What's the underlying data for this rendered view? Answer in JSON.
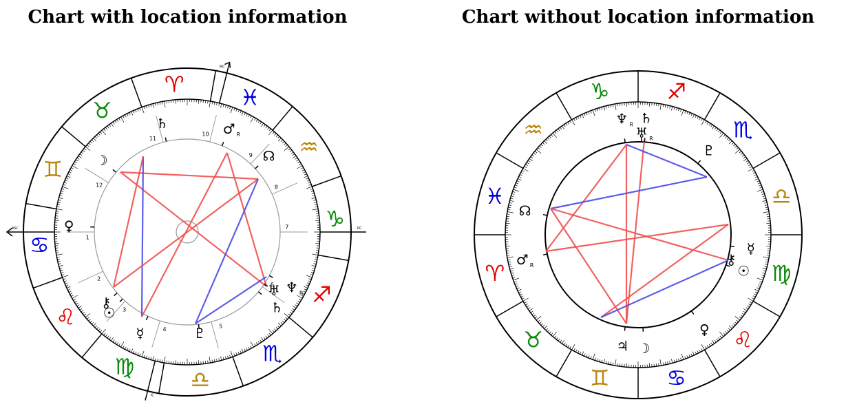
{
  "colors": {
    "fire": "#e00000",
    "earth": "#0a8a0a",
    "air": "#b8860b",
    "water": "#0000e0",
    "red_aspect": "#f05050",
    "blue_aspect": "#4a4ae8",
    "ink": "#000000",
    "house_line": "#999999"
  },
  "charts": [
    {
      "title": "Chart with location information",
      "center": [
        272,
        337
      ],
      "r_out": 238,
      "r_in": 193,
      "r_tick": 183,
      "r_plan": 135,
      "r_small": 16,
      "sign_order": [
        "pisces",
        "aries",
        "taurus",
        "gemini",
        "cancer",
        "leo",
        "virgo",
        "libra",
        "scorpio",
        "sagittarius",
        "capricorn",
        "aquarius"
      ],
      "sign_glyphs_text": [
        "♓",
        "♈",
        "♉",
        "♊",
        "♋",
        "♌",
        "♍",
        "♎",
        "♏",
        "♐",
        "♑",
        "♒"
      ],
      "sign_start_angle": 50,
      "axis_labels": {
        "asc": "ASC",
        "dc": "DC",
        "mc": "MC",
        "ic": "IC"
      },
      "axes": {
        "asc_angle": 180,
        "mc_angle": 76
      },
      "house_numbers": [
        "1",
        "2",
        "3",
        "4",
        "5",
        "6",
        "7",
        "8",
        "9",
        "10",
        "11",
        "12"
      ],
      "house_angles": [
        180,
        205,
        228,
        253,
        285,
        324,
        0,
        24,
        47,
        76,
        105,
        148
      ],
      "planets": [
        {
          "glyph": "♄",
          "angle": 103,
          "r": 162,
          "retro": ""
        },
        {
          "glyph": "♂",
          "angle": 68,
          "r": 162,
          "retro": "R"
        },
        {
          "glyph": "☊",
          "angle": 43,
          "r": 162,
          "retro": ""
        },
        {
          "glyph": "☽",
          "angle": 140,
          "r": 162,
          "retro": ""
        },
        {
          "glyph": "♀",
          "angle": 177,
          "r": 172,
          "retro": ""
        },
        {
          "glyph": "☉",
          "angle": 226,
          "r": 163,
          "retro": ""
        },
        {
          "glyph": "⚷",
          "angle": 221,
          "r": 156,
          "retro": ""
        },
        {
          "glyph": "☿",
          "angle": 245,
          "r": 162,
          "retro": ""
        },
        {
          "glyph": "♇",
          "angle": 277,
          "r": 148,
          "retro": ""
        },
        {
          "glyph": "♅",
          "angle": 326,
          "r": 152,
          "retro": ""
        },
        {
          "glyph": "♄",
          "angle": 320,
          "r": 170,
          "retro": ""
        },
        {
          "glyph": "♆",
          "angle": 332,
          "r": 172,
          "retro": "R"
        }
      ],
      "aspects": [
        {
          "from": [
            175,
            250
          ],
          "to": [
            387,
            416
          ],
          "color": "red"
        },
        {
          "from": [
            175,
            250
          ],
          "to": [
            375,
            260
          ],
          "color": "red"
        },
        {
          "from": [
            208,
            227
          ],
          "to": [
            206,
            460
          ],
          "color": "blue"
        },
        {
          "from": [
            208,
            227
          ],
          "to": [
            165,
            417
          ],
          "color": "red"
        },
        {
          "from": [
            165,
            417
          ],
          "to": [
            375,
            260
          ],
          "color": "red"
        },
        {
          "from": [
            330,
            222
          ],
          "to": [
            206,
            460
          ],
          "color": "red"
        },
        {
          "from": [
            330,
            222
          ],
          "to": [
            387,
            416
          ],
          "color": "red"
        },
        {
          "from": [
            375,
            260
          ],
          "to": [
            284,
            470
          ],
          "color": "blue"
        },
        {
          "from": [
            387,
            402
          ],
          "to": [
            284,
            470
          ],
          "color": "blue"
        }
      ]
    },
    {
      "title": "Chart without location information",
      "center": [
        927,
        341
      ],
      "r_out": 238,
      "r_in": 193,
      "r_tick": 183,
      "r_plan": 135,
      "r_small": 0,
      "sign_order": [
        "gemini",
        "cancer",
        "leo",
        "virgo",
        "libra",
        "scorpio",
        "sagittarius",
        "capricorn",
        "aquarius",
        "pisces",
        "aries",
        "taurus"
      ],
      "sign_glyphs_text": [
        "♊",
        "♋",
        "♌",
        "♍",
        "♎",
        "♏",
        "♐",
        "♑",
        "♒",
        "♓",
        "♈",
        "♉"
      ],
      "sign_start_angle": 240,
      "planets": [
        {
          "glyph": "♆",
          "angle": 98,
          "r": 170,
          "retro": "R"
        },
        {
          "glyph": "♄",
          "angle": 86,
          "r": 170,
          "retro": ""
        },
        {
          "glyph": "♅",
          "angle": 88,
          "r": 148,
          "retro": "R"
        },
        {
          "glyph": "♇",
          "angle": 50,
          "r": 160,
          "retro": ""
        },
        {
          "glyph": "☊",
          "angle": 168,
          "r": 168,
          "retro": ""
        },
        {
          "glyph": "☿",
          "angle": 353,
          "r": 165,
          "retro": ""
        },
        {
          "glyph": "⚷",
          "angle": 345,
          "r": 140,
          "retro": ""
        },
        {
          "glyph": "☉",
          "angle": 341,
          "r": 162,
          "retro": ""
        },
        {
          "glyph": "♂",
          "angle": 192,
          "r": 172,
          "retro": "R"
        },
        {
          "glyph": "♃",
          "angle": 262,
          "r": 163,
          "retro": ""
        },
        {
          "glyph": "☽",
          "angle": 273,
          "r": 165,
          "retro": ""
        },
        {
          "glyph": "♀",
          "angle": 305,
          "r": 168,
          "retro": ""
        }
      ],
      "aspects": [
        {
          "from": [
            910,
            210
          ],
          "to": [
            910,
            470
          ],
          "color": "red"
        },
        {
          "from": [
            936,
            203
          ],
          "to": [
            910,
            470
          ],
          "color": "red"
        },
        {
          "from": [
            910,
            210
          ],
          "to": [
            793,
            365
          ],
          "color": "red"
        },
        {
          "from": [
            910,
            210
          ],
          "to": [
            1027,
            257
          ],
          "color": "blue"
        },
        {
          "from": [
            800,
            303
          ],
          "to": [
            1027,
            257
          ],
          "color": "blue"
        },
        {
          "from": [
            800,
            303
          ],
          "to": [
            1058,
            378
          ],
          "color": "red"
        },
        {
          "from": [
            800,
            303
          ],
          "to": [
            910,
            470
          ],
          "color": "red"
        },
        {
          "from": [
            793,
            365
          ],
          "to": [
            1058,
            326
          ],
          "color": "red"
        },
        {
          "from": [
            1058,
            326
          ],
          "to": [
            873,
            461
          ],
          "color": "red"
        },
        {
          "from": [
            1058,
            378
          ],
          "to": [
            873,
            461
          ],
          "color": "blue"
        }
      ]
    }
  ]
}
